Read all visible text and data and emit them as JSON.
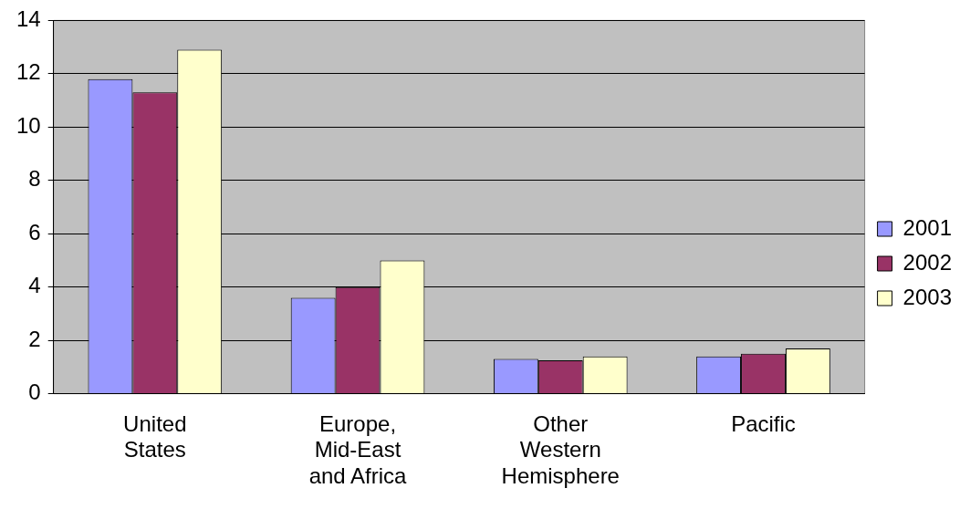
{
  "chart_data": {
    "type": "bar",
    "categories": [
      "United States",
      "Europe, Mid-East and Africa",
      "Other Western Hemisphere",
      "Pacific"
    ],
    "series": [
      {
        "name": "2001",
        "color": "#9999ff",
        "values": [
          11.8,
          3.6,
          1.3,
          1.4
        ]
      },
      {
        "name": "2002",
        "color": "#993366",
        "values": [
          11.3,
          4.0,
          1.25,
          1.5
        ]
      },
      {
        "name": "2003",
        "color": "#ffffcc",
        "values": [
          12.9,
          5.0,
          1.4,
          1.7
        ]
      }
    ],
    "ylim": [
      0,
      14
    ],
    "yticks": [
      0,
      2,
      4,
      6,
      8,
      10,
      12,
      14
    ],
    "grid": "y",
    "legend": "right"
  }
}
